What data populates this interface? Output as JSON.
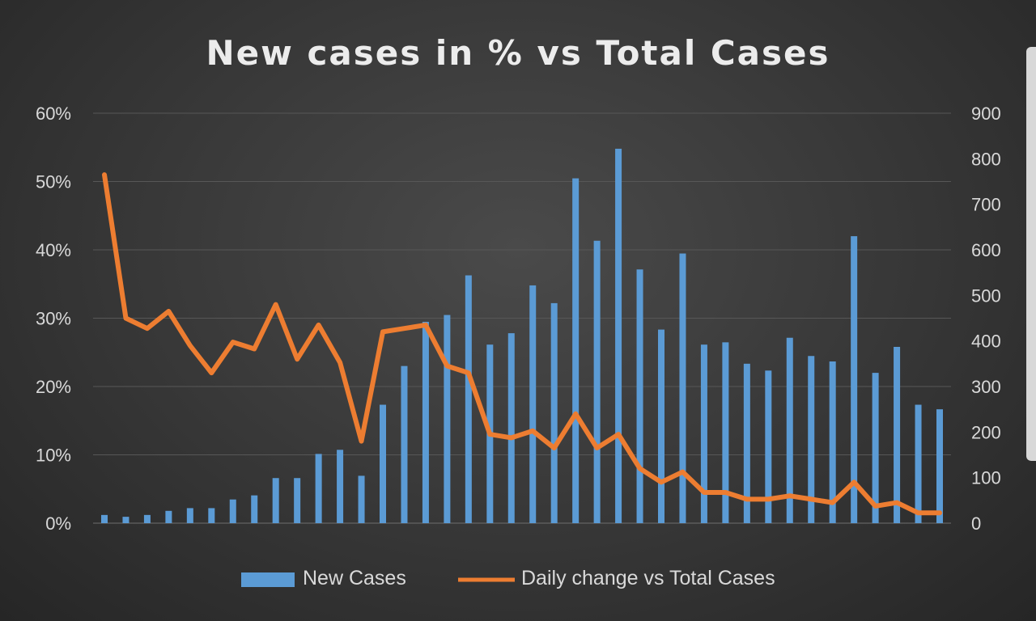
{
  "chart_data": {
    "type": "bar+line",
    "title": "New cases in % vs Total Cases",
    "y_left": {
      "ticks": [
        "0%",
        "10%",
        "20%",
        "30%",
        "40%",
        "50%",
        "60%"
      ],
      "range": [
        0,
        60
      ]
    },
    "y_right": {
      "ticks": [
        "0",
        "100",
        "200",
        "300",
        "400",
        "500",
        "600",
        "700",
        "800",
        "900"
      ],
      "range": [
        0,
        900
      ]
    },
    "grid": true,
    "legend_position": "bottom",
    "series": [
      {
        "name": "New Cases",
        "type": "bar",
        "axis": "right",
        "color": "#5b9bd5",
        "values": [
          18,
          14,
          18,
          27,
          33,
          33,
          52,
          61,
          99,
          99,
          152,
          161,
          104,
          260,
          345,
          442,
          457,
          544,
          392,
          417,
          522,
          483,
          757,
          620,
          822,
          557,
          425,
          592,
          392,
          397,
          350,
          335,
          407,
          367,
          355,
          630,
          330,
          387,
          260,
          250
        ]
      },
      {
        "name": "Daily change vs Total Cases",
        "type": "line",
        "axis": "left",
        "color": "#ed7d31",
        "values": [
          51,
          30,
          28.5,
          31,
          26,
          22,
          26.5,
          25.5,
          32,
          24,
          29,
          23.5,
          12,
          28,
          28.5,
          29,
          23,
          22,
          13,
          12.5,
          13.5,
          11,
          16,
          11,
          13,
          8,
          6,
          7.5,
          4.5,
          4.5,
          3.5,
          3.5,
          4,
          3.5,
          3,
          6,
          2.5,
          3,
          1.5,
          1.5
        ]
      }
    ]
  }
}
